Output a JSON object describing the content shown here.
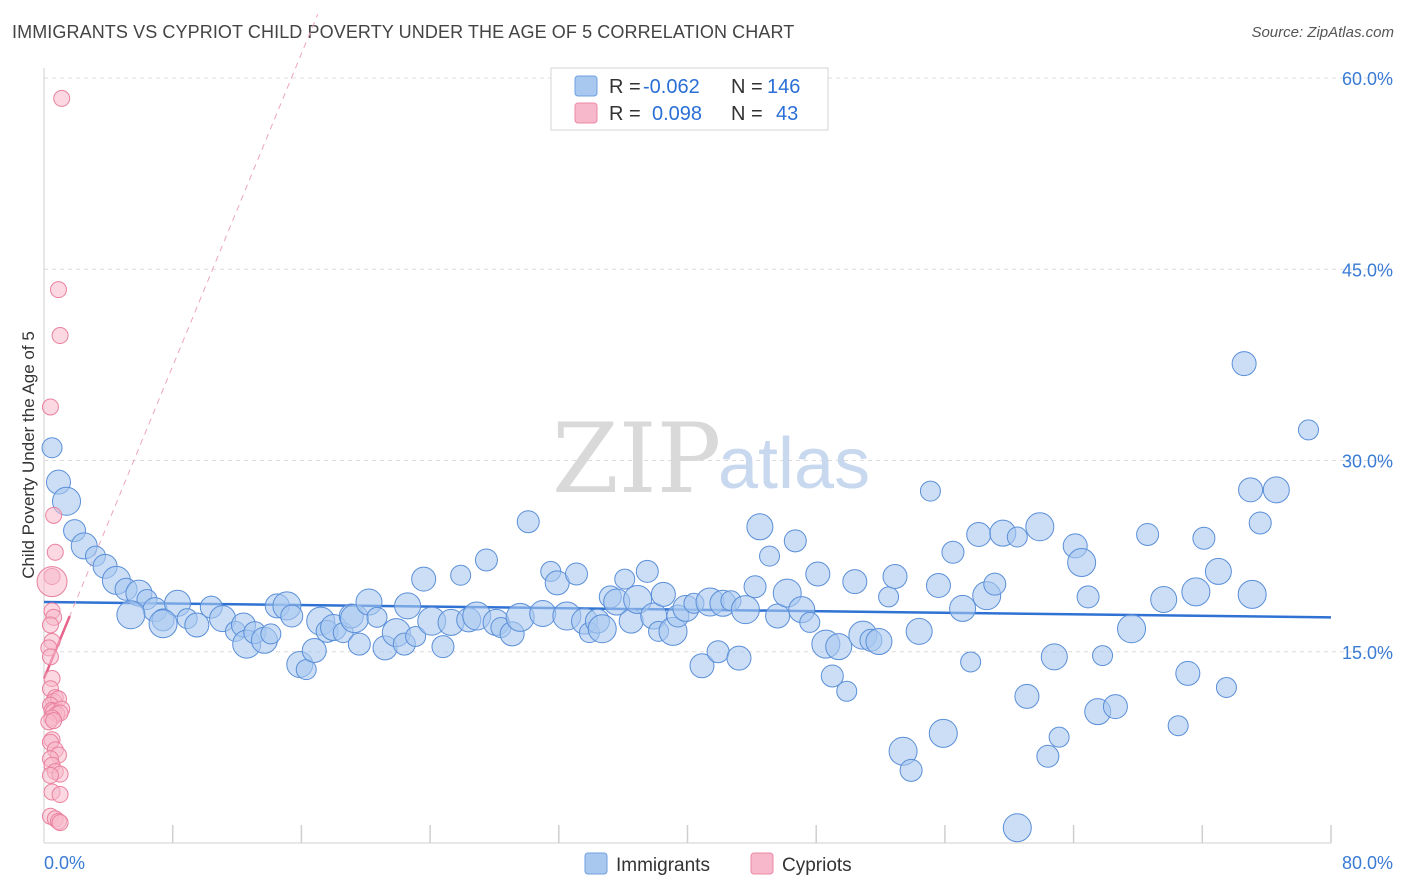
{
  "header": {
    "title": "IMMIGRANTS VS CYPRIOT CHILD POVERTY UNDER THE AGE OF 5 CORRELATION CHART",
    "source": "Source: ZipAtlas.com"
  },
  "watermark": {
    "zip": "ZIP",
    "atlas": "atlas"
  },
  "legend": {
    "rows": [
      {
        "r_label": "R =",
        "r_value": "-0.062",
        "n_label": "N =",
        "n_value": "146",
        "color": "#a9c8f0",
        "stroke": "#6f9fe0"
      },
      {
        "r_label": "R =",
        "r_value": "0.098",
        "n_label": "N =",
        "n_value": "43",
        "color": "#f7b8cb",
        "stroke": "#ec88a6"
      }
    ],
    "bottom": [
      {
        "label": "Immigrants",
        "color": "#a9c8f0",
        "stroke": "#6f9fe0"
      },
      {
        "label": "Cypriots",
        "color": "#f7b8cb",
        "stroke": "#ec88a6"
      }
    ]
  },
  "colors": {
    "immigrants_fill": "#a9c8f0",
    "immigrants_stroke": "#5b8fd8",
    "immigrants_line": "#2f72d3",
    "cypriots_fill": "#f7b8cb",
    "cypriots_stroke": "#e9819f",
    "cypriots_line": "#e8638c",
    "grid": "#dcdcdc",
    "tick_label": "#3a7bd5"
  },
  "chart_data": {
    "type": "scatter",
    "title": "IMMIGRANTS VS CYPRIOT CHILD POVERTY UNDER THE AGE OF 5 CORRELATION CHART",
    "xlabel": "",
    "ylabel": "Child Poverty Under the Age of 5",
    "xlim": [
      0,
      80
    ],
    "ylim": [
      0,
      60
    ],
    "x_tick_labels": [
      "0.0%",
      "80.0%"
    ],
    "y_ticks": [
      15,
      30,
      45,
      60
    ],
    "y_tick_labels": [
      "15.0%",
      "30.0%",
      "45.0%",
      "60.0%"
    ],
    "series": [
      {
        "name": "Immigrants",
        "r": -0.062,
        "n": 146,
        "trend": {
          "x": [
            0,
            80
          ],
          "y": [
            18.9,
            17.7
          ]
        },
        "points": [
          [
            0.5,
            31,
            12
          ],
          [
            0.9,
            28.3,
            12
          ],
          [
            1.4,
            26.8,
            12
          ],
          [
            1.9,
            24.5,
            12
          ],
          [
            2.5,
            23.3,
            12
          ],
          [
            3.2,
            22.5,
            12
          ],
          [
            3.8,
            21.7,
            12
          ],
          [
            4.5,
            20.6,
            12
          ],
          [
            5.1,
            19.9,
            12
          ],
          [
            5.9,
            19.6,
            12
          ],
          [
            6.4,
            19.1,
            12
          ],
          [
            6.9,
            18.3,
            12
          ],
          [
            5.4,
            17.9,
            12
          ],
          [
            7.4,
            17.5,
            12
          ],
          [
            8.3,
            18.8,
            12
          ],
          [
            8.9,
            17.6,
            12
          ],
          [
            9.5,
            17.1,
            12
          ],
          [
            7.4,
            17.2,
            12
          ],
          [
            10.4,
            18.5,
            12
          ],
          [
            11.1,
            17.6,
            12
          ],
          [
            11.9,
            16.6,
            12
          ],
          [
            12.4,
            17.1,
            12
          ],
          [
            12.6,
            15.6,
            12
          ],
          [
            13.1,
            16.5,
            12
          ],
          [
            13.7,
            15.9,
            12
          ],
          [
            14.1,
            16.4,
            12
          ],
          [
            14.5,
            18.6,
            12
          ],
          [
            15.1,
            18.6,
            12
          ],
          [
            15.4,
            17.8,
            12
          ],
          [
            15.9,
            14,
            12
          ],
          [
            16.3,
            13.6,
            12
          ],
          [
            16.8,
            15.1,
            12
          ],
          [
            17.2,
            17.4,
            12
          ],
          [
            17.6,
            16.6,
            12
          ],
          [
            18,
            16.9,
            12
          ],
          [
            18.6,
            16.5,
            12
          ],
          [
            19.1,
            17.8,
            12
          ],
          [
            19.3,
            17.6,
            12
          ],
          [
            19.6,
            15.6,
            12
          ],
          [
            20.2,
            18.9,
            12
          ],
          [
            20.7,
            17.7,
            12
          ],
          [
            21.2,
            15.3,
            12
          ],
          [
            21.9,
            16.5,
            12
          ],
          [
            22.4,
            15.6,
            12
          ],
          [
            22.6,
            18.6,
            12
          ],
          [
            23.1,
            16.2,
            12
          ],
          [
            23.6,
            20.7,
            12
          ],
          [
            24.1,
            17.4,
            12
          ],
          [
            24.8,
            15.4,
            12
          ],
          [
            25.3,
            17.3,
            12
          ],
          [
            25.9,
            21,
            12
          ],
          [
            26.4,
            17.5,
            12
          ],
          [
            26.9,
            17.8,
            12
          ],
          [
            27.5,
            22.2,
            12
          ],
          [
            28.1,
            17.3,
            12
          ],
          [
            28.4,
            16.9,
            12
          ],
          [
            29.1,
            16.4,
            12
          ],
          [
            29.6,
            17.7,
            12
          ],
          [
            30.1,
            25.2,
            12
          ],
          [
            31,
            18,
            12
          ],
          [
            31.5,
            21.3,
            12
          ],
          [
            31.9,
            20.4,
            12
          ],
          [
            32.5,
            17.8,
            12
          ],
          [
            33.1,
            21.1,
            12
          ],
          [
            33.6,
            17.4,
            12
          ],
          [
            33.9,
            16.5,
            12
          ],
          [
            34.4,
            17.4,
            12
          ],
          [
            34.7,
            16.8,
            12
          ],
          [
            35.2,
            19.3,
            12
          ],
          [
            35.6,
            18.9,
            12
          ],
          [
            36.1,
            20.7,
            12
          ],
          [
            36.5,
            17.4,
            12
          ],
          [
            36.9,
            19.1,
            12
          ],
          [
            37.5,
            21.3,
            12
          ],
          [
            37.9,
            17.8,
            12
          ],
          [
            38.2,
            16.6,
            12
          ],
          [
            38.5,
            19.5,
            12
          ],
          [
            39.1,
            16.6,
            12
          ],
          [
            39.4,
            17.8,
            12
          ],
          [
            39.9,
            18.4,
            12
          ],
          [
            40.4,
            18.8,
            12
          ],
          [
            40.9,
            13.9,
            12
          ],
          [
            41.4,
            18.9,
            12
          ],
          [
            41.9,
            15,
            12
          ],
          [
            42.2,
            18.8,
            12
          ],
          [
            42.7,
            19,
            12
          ],
          [
            43.2,
            14.5,
            12
          ],
          [
            43.6,
            18.3,
            12
          ],
          [
            44.2,
            20.1,
            12
          ],
          [
            44.5,
            24.8,
            12
          ],
          [
            45.1,
            22.5,
            12
          ],
          [
            45.6,
            17.8,
            12
          ],
          [
            46.2,
            19.6,
            12
          ],
          [
            46.7,
            23.7,
            12
          ],
          [
            47.1,
            18.3,
            12
          ],
          [
            47.6,
            17.3,
            12
          ],
          [
            48.1,
            21.1,
            12
          ],
          [
            48.6,
            15.6,
            12
          ],
          [
            49,
            13.1,
            12
          ],
          [
            49.4,
            15.4,
            12
          ],
          [
            49.9,
            11.9,
            12
          ],
          [
            50.4,
            20.5,
            12
          ],
          [
            50.9,
            16.3,
            12
          ],
          [
            51.4,
            15.9,
            12
          ],
          [
            51.9,
            15.8,
            12
          ],
          [
            52.5,
            19.3,
            12
          ],
          [
            52.9,
            20.9,
            12
          ],
          [
            53.4,
            7.2,
            12
          ],
          [
            53.9,
            5.7,
            12
          ],
          [
            54.4,
            16.6,
            12
          ],
          [
            55.1,
            27.6,
            12
          ],
          [
            55.6,
            20.2,
            12
          ],
          [
            55.9,
            8.6,
            12
          ],
          [
            56.5,
            22.8,
            12
          ],
          [
            57.1,
            18.4,
            12
          ],
          [
            57.6,
            14.2,
            12
          ],
          [
            58.1,
            24.2,
            12
          ],
          [
            58.6,
            19.4,
            12
          ],
          [
            59.1,
            20.3,
            12
          ],
          [
            59.6,
            24.3,
            12
          ],
          [
            60.5,
            24,
            12
          ],
          [
            61.1,
            11.5,
            12
          ],
          [
            61.9,
            24.8,
            12
          ],
          [
            62.4,
            6.8,
            12
          ],
          [
            62.8,
            14.6,
            12
          ],
          [
            63.1,
            8.3,
            12
          ],
          [
            64.1,
            23.3,
            12
          ],
          [
            64.5,
            22,
            12
          ],
          [
            64.9,
            19.3,
            12
          ],
          [
            65.5,
            10.3,
            12
          ],
          [
            65.8,
            14.7,
            12
          ],
          [
            66.6,
            10.7,
            12
          ],
          [
            67.6,
            16.8,
            12
          ],
          [
            68.6,
            24.2,
            12
          ],
          [
            69.6,
            19.1,
            12
          ],
          [
            70.5,
            9.2,
            12
          ],
          [
            71.1,
            13.3,
            12
          ],
          [
            71.6,
            19.7,
            12
          ],
          [
            72.1,
            23.9,
            12
          ],
          [
            73,
            21.3,
            12
          ],
          [
            73.5,
            12.2,
            12
          ],
          [
            74.6,
            37.6,
            12
          ],
          [
            75.1,
            19.5,
            12
          ],
          [
            75.6,
            25.1,
            12
          ],
          [
            76.6,
            27.7,
            12
          ],
          [
            78.6,
            32.4,
            12
          ],
          [
            75,
            27.7,
            12
          ],
          [
            60.5,
            1.2,
            12
          ]
        ]
      },
      {
        "name": "Cypriots",
        "r": 0.098,
        "n": 43,
        "trend": {
          "x": [
            0,
            1.6
          ],
          "y": [
            12.9,
            17.8
          ]
        },
        "points": [
          [
            1.1,
            58.4,
            11
          ],
          [
            0.9,
            43.4,
            11
          ],
          [
            1,
            39.8,
            11
          ],
          [
            0.4,
            34.2,
            11
          ],
          [
            0.6,
            25.7,
            11
          ],
          [
            0.7,
            22.8,
            11
          ],
          [
            0.5,
            20.9,
            11
          ],
          [
            0.5,
            20.5,
            18
          ],
          [
            0.5,
            18.2,
            11
          ],
          [
            0.6,
            17.7,
            11
          ],
          [
            0.4,
            17.1,
            11
          ],
          [
            0.5,
            15.8,
            11
          ],
          [
            0.3,
            15.3,
            11
          ],
          [
            0.4,
            14.6,
            11
          ],
          [
            0.5,
            12.9,
            11
          ],
          [
            0.4,
            12.1,
            11
          ],
          [
            0.7,
            11.4,
            11
          ],
          [
            0.6,
            11.1,
            11
          ],
          [
            0.9,
            11.3,
            11
          ],
          [
            0.4,
            10.8,
            11
          ],
          [
            0.5,
            10.4,
            11
          ],
          [
            0.6,
            10.3,
            11
          ],
          [
            1.1,
            10.5,
            11
          ],
          [
            0.8,
            10.1,
            11
          ],
          [
            1,
            10.2,
            11
          ],
          [
            0.5,
            9.8,
            11
          ],
          [
            0.3,
            9.5,
            11
          ],
          [
            0.6,
            9.6,
            11
          ],
          [
            0.5,
            8.1,
            11
          ],
          [
            0.4,
            7.9,
            11
          ],
          [
            0.7,
            7.3,
            11
          ],
          [
            0.9,
            6.9,
            11
          ],
          [
            0.4,
            6.6,
            11
          ],
          [
            0.5,
            6.1,
            11
          ],
          [
            0.7,
            5.6,
            11
          ],
          [
            1,
            5.4,
            11
          ],
          [
            0.4,
            5.3,
            11
          ],
          [
            0.5,
            4,
            11
          ],
          [
            1,
            3.8,
            11
          ],
          [
            0.4,
            2.1,
            11
          ],
          [
            0.7,
            1.9,
            11
          ],
          [
            0.9,
            1.7,
            11
          ],
          [
            1,
            1.6,
            11
          ]
        ]
      }
    ]
  }
}
